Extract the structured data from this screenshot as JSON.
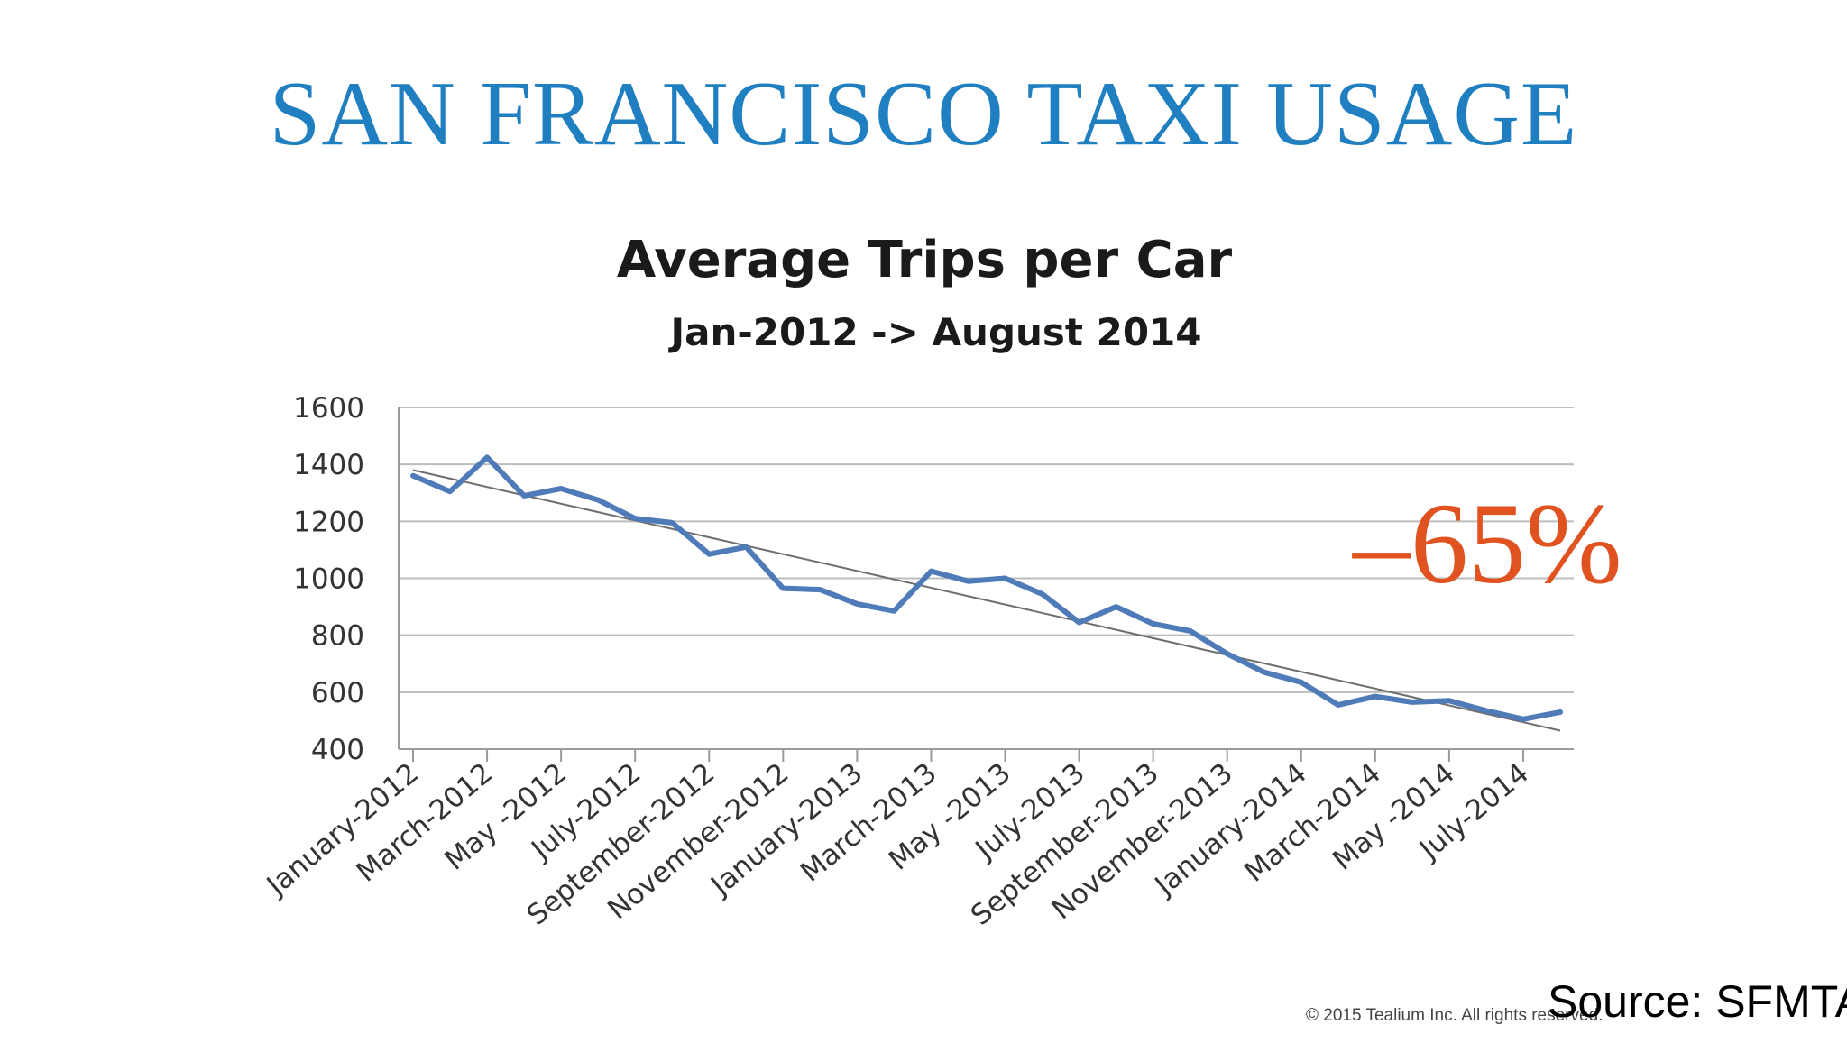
{
  "slide": {
    "title": "SAN FRANCISCO TAXI USAGE",
    "annotation": "–65%",
    "copyright": "© 2015 Tealium Inc. All rights reserved.",
    "source": "Source: SFMTA"
  },
  "chart_data": {
    "type": "line",
    "title": "Average Trips per Car",
    "subtitle": "Jan-2012 -> August 2014",
    "xlabel": "",
    "ylabel": "",
    "ylim": [
      400,
      1600
    ],
    "yticks": [
      1600,
      1400,
      1200,
      1000,
      800,
      600,
      400
    ],
    "grid": true,
    "legend": "none",
    "x_tick_labels": [
      "January-2012",
      "March-2012",
      "May -2012",
      "July-2012",
      "September-2012",
      "November-2012",
      "January-2013",
      "March-2013",
      "May -2013",
      "July-2013",
      "September-2013",
      "November-2013",
      "January-2014",
      "March-2014",
      "May -2014",
      "July-2014"
    ],
    "x": [
      "Jan-2012",
      "Feb-2012",
      "Mar-2012",
      "Apr-2012",
      "May-2012",
      "Jun-2012",
      "Jul-2012",
      "Aug-2012",
      "Sep-2012",
      "Oct-2012",
      "Nov-2012",
      "Dec-2012",
      "Jan-2013",
      "Feb-2013",
      "Mar-2013",
      "Apr-2013",
      "May-2013",
      "Jun-2013",
      "Jul-2013",
      "Aug-2013",
      "Sep-2013",
      "Oct-2013",
      "Nov-2013",
      "Dec-2013",
      "Jan-2014",
      "Feb-2014",
      "Mar-2014",
      "Apr-2014",
      "May-2014",
      "Jun-2014",
      "Jul-2014",
      "Aug-2014"
    ],
    "series": [
      {
        "values": [
          1360,
          1305,
          1425,
          1290,
          1315,
          1275,
          1210,
          1195,
          1085,
          1110,
          965,
          960,
          910,
          885,
          1025,
          990,
          1000,
          945,
          845,
          900,
          840,
          815,
          735,
          670,
          635,
          555,
          585,
          565,
          570,
          535,
          505,
          530
        ],
        "color": "#4f7bb8"
      }
    ],
    "trendline": {
      "start": 1380,
      "end": 465,
      "color": "#6e6e6e"
    }
  }
}
